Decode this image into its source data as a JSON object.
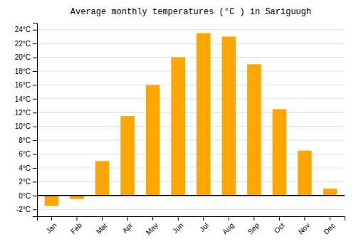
{
  "chart_data": {
    "type": "bar",
    "title": "Average monthly temperatures (°C ) in Sariguugh",
    "categories": [
      "Jan",
      "Feb",
      "Mar",
      "Apr",
      "May",
      "Jun",
      "Jul",
      "Aug",
      "Sep",
      "Oct",
      "Nov",
      "Dec"
    ],
    "values": [
      -1.5,
      -0.5,
      5.0,
      11.5,
      16.0,
      20.0,
      23.5,
      23.0,
      19.0,
      12.5,
      6.5,
      1.0
    ],
    "color": "#FFA500",
    "ylim": [
      -3,
      25
    ],
    "yticks": [
      {
        "value": -2,
        "label": "-2°C"
      },
      {
        "value": 0,
        "label": "0°C"
      },
      {
        "value": 2,
        "label": "2°C"
      },
      {
        "value": 4,
        "label": "4°C"
      },
      {
        "value": 6,
        "label": "6°C"
      },
      {
        "value": 8,
        "label": "8°C"
      },
      {
        "value": 10,
        "label": "10°C"
      },
      {
        "value": 12,
        "label": "12°C"
      },
      {
        "value": 14,
        "label": "14°C"
      },
      {
        "value": 16,
        "label": "16°C"
      },
      {
        "value": 18,
        "label": "18°C"
      },
      {
        "value": 20,
        "label": "20°C"
      },
      {
        "value": 22,
        "label": "22°C"
      },
      {
        "value": 24,
        "label": "24°C"
      }
    ],
    "grid": true
  }
}
